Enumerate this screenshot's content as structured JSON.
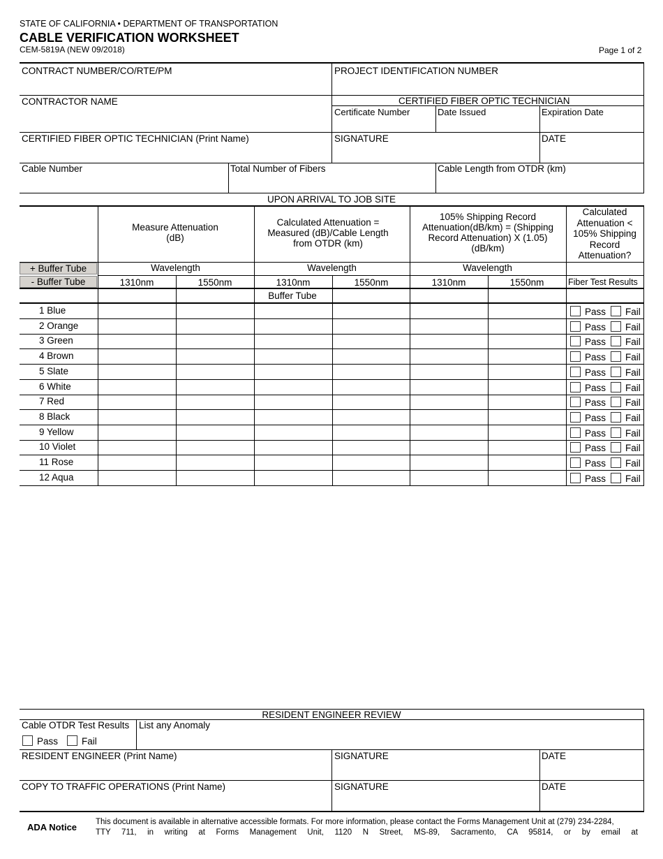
{
  "header": {
    "agency": "STATE OF CALIFORNIA • DEPARTMENT OF TRANSPORTATION",
    "title": "CABLE VERIFICATION WORKSHEET",
    "form_id": "CEM-5819A (NEW 09/2018)",
    "page": "Page 1 of 2"
  },
  "fields": {
    "contract": "CONTRACT NUMBER/CO/RTE/PM",
    "project": "PROJECT IDENTIFICATION NUMBER",
    "contractor": "CONTRACTOR NAME",
    "cfot": "CERTIFIED FIBER OPTIC TECHNICIAN",
    "cert_number": "Certificate Number",
    "date_issued": "Date Issued",
    "expiration": "Expiration Date",
    "tech_name": "CERTIFIED FIBER OPTIC TECHNICIAN (Print Name)",
    "signature": "SIGNATURE",
    "date": "DATE",
    "cable_number": "Cable Number",
    "total_fibers": "Total Number of Fibers",
    "cable_length": "Cable Length from OTDR (km)"
  },
  "table": {
    "section": "UPON ARRIVAL TO  JOB SITE",
    "col1": "Measure Attenuation (dB)",
    "col2": "Calculated Attenuation = Measured (dB)/Cable Length from OTDR (km)",
    "col3": "105% Shipping Record Attenuation(dB/km) = (Shipping Record Attenuation) X (1.05) (dB/km)",
    "col4": "Calculated Attenuation < 105% Shipping Record Attenuation?",
    "add_button": "+ Buffer Tube",
    "remove_button": "- Buffer Tube",
    "wavelength": "Wavelength",
    "nm1": "1310nm",
    "nm2": "1550nm",
    "results": "Fiber Test Results",
    "buffer_tube": "Buffer Tube",
    "pass": "Pass",
    "fail": "Fail",
    "rows": [
      "1 Blue",
      "2 Orange",
      "3 Green",
      "4 Brown",
      "5 Slate",
      "6 White",
      "7 Red",
      "8 Black",
      "9 Yellow",
      "10 Violet",
      "11 Rose",
      "12 Aqua"
    ]
  },
  "review": {
    "title": "RESIDENT ENGINEER REVIEW",
    "otdr": "Cable OTDR Test Results",
    "anomaly": "List any Anomaly",
    "pass": "Pass",
    "fail": "Fail",
    "re_name": "RESIDENT ENGINEER (Print Name)",
    "signature": "SIGNATURE",
    "date": "DATE",
    "copy": "COPY TO TRAFFIC OPERATIONS (Print Name)",
    "signature2": "SIGNATURE",
    "date2": "DATE"
  },
  "ada": {
    "label": "ADA Notice",
    "line1": "This document is available in alternative accessible formats. For more information, please contact the Forms Management Unit at (279) 234-2284,",
    "line2": "TTY  711,  in  writing  at  Forms  Management  Unit,  1120  N  Street,  MS-89,  Sacramento,  CA  95814,  or  by  email  at"
  }
}
